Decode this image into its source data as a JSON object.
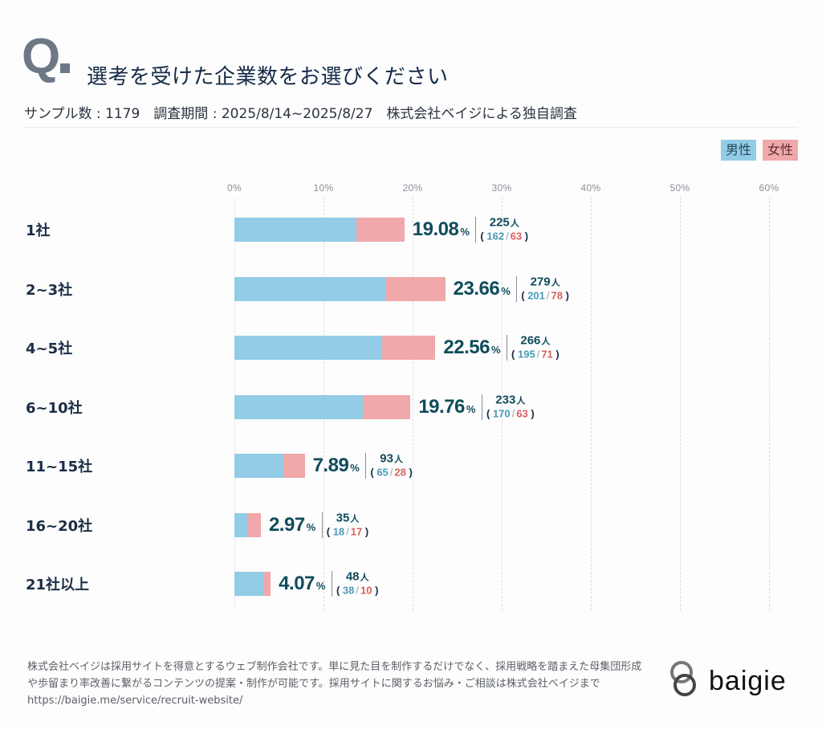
{
  "header": {
    "q_mark": "Q",
    "title": "選考を受けた企業数をお選びください",
    "meta": "サンプル数 : 1179　調査期間 : 2025/8/14~2025/8/27　株式会社ベイジによる独自調査"
  },
  "legend": {
    "male": "男性",
    "female": "女性"
  },
  "colors": {
    "male": "#93cce6",
    "female": "#f0a8aa",
    "male_text": "#4a9ab8",
    "female_text": "#d9605f",
    "value_text": "#0f4c5c"
  },
  "chart_data": {
    "type": "bar",
    "orientation": "horizontal",
    "stacked": true,
    "title": "選考を受けた企業数をお選びください",
    "sample_size": 1179,
    "xlabel": "",
    "ylabel": "",
    "xlim": [
      0,
      60
    ],
    "x_ticks": [
      "0%",
      "10%",
      "20%",
      "30%",
      "40%",
      "50%",
      "60%"
    ],
    "x_tick_values": [
      0,
      10,
      20,
      30,
      40,
      50,
      60
    ],
    "grid": true,
    "legend_position": "top-right",
    "categories": [
      "1社",
      "2~3社",
      "4~5社",
      "6~10社",
      "11~15社",
      "16~20社",
      "21社以上"
    ],
    "percent": [
      19.08,
      23.66,
      22.56,
      19.76,
      7.89,
      2.97,
      4.07
    ],
    "percent_labels": [
      "19.08",
      "23.66",
      "22.56",
      "19.76",
      "7.89",
      "2.97",
      "4.07"
    ],
    "totals": [
      225,
      279,
      266,
      233,
      93,
      35,
      48
    ],
    "series": [
      {
        "name": "男性",
        "values": [
          162,
          201,
          195,
          170,
          65,
          18,
          38
        ]
      },
      {
        "name": "女性",
        "values": [
          63,
          78,
          71,
          63,
          28,
          17,
          10
        ]
      }
    ],
    "percent_unit": "%",
    "people_unit": "人"
  },
  "footer": {
    "text": "株式会社ベイジは採用サイトを得意とするウェブ制作会社です。単に見た目を制作するだけでなく、採用戦略を踏まえた母集団形成や歩留まり率改善に繋がるコンテンツの提案・制作が可能です。採用サイトに関するお悩み・ご相談は株式会社ベイジまで",
    "url": "https://baigie.me/service/recruit-website/"
  },
  "logo": {
    "text": "baigie"
  }
}
